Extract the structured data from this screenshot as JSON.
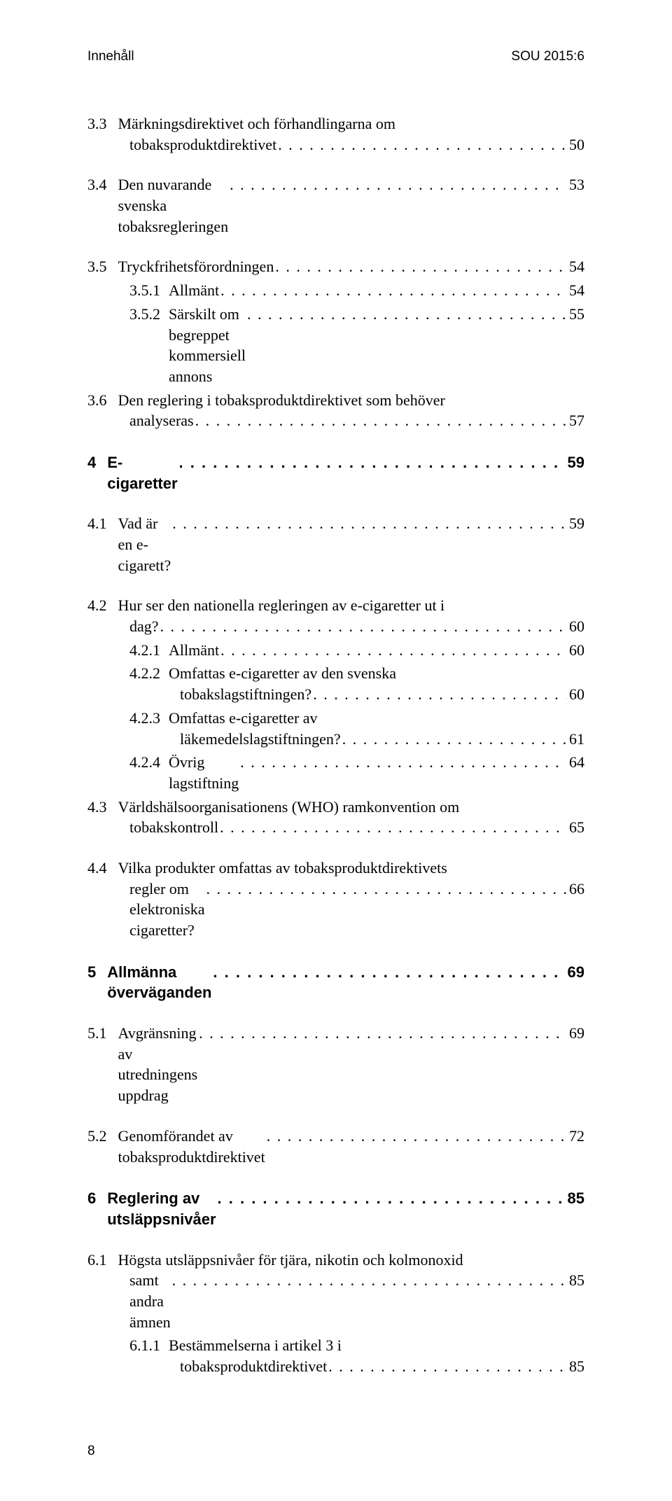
{
  "header": {
    "left": "Innehåll",
    "right": "SOU 2015:6"
  },
  "toc": [
    {
      "type": "entry",
      "num": "3.3",
      "title_lines": [
        "Märkningsdirektivet och förhandlingarna om",
        "tobaksproduktdirektivet"
      ],
      "page": "50",
      "style": "serif"
    },
    {
      "type": "entry",
      "num": "3.4",
      "title_lines": [
        "Den nuvarande svenska tobaksregleringen"
      ],
      "page": "53",
      "style": "serif"
    },
    {
      "type": "entry",
      "num": "3.5",
      "title_lines": [
        "Tryckfrihetsförordningen"
      ],
      "page": "54",
      "style": "serif"
    },
    {
      "type": "sub",
      "num": "3.5.1",
      "title_lines": [
        "Allmänt"
      ],
      "page": "54",
      "style": "serif"
    },
    {
      "type": "sub",
      "num": "3.5.2",
      "title_lines": [
        "Särskilt om begreppet kommersiell annons"
      ],
      "page": "55",
      "style": "serif"
    },
    {
      "type": "entry",
      "num": "3.6",
      "title_lines": [
        "Den reglering i tobaksproduktdirektivet som behöver",
        "analyseras"
      ],
      "page": "57",
      "style": "serif"
    },
    {
      "type": "chapter",
      "num": "4",
      "title_lines": [
        "E-cigaretter"
      ],
      "page": "59",
      "style": "sans-bold"
    },
    {
      "type": "entry",
      "num": "4.1",
      "title_lines": [
        "Vad är en e-cigarett?"
      ],
      "page": "59",
      "style": "serif"
    },
    {
      "type": "entry",
      "num": "4.2",
      "title_lines": [
        "Hur ser den nationella regleringen av e-cigaretter ut i",
        "dag?"
      ],
      "page": "60",
      "style": "serif"
    },
    {
      "type": "sub",
      "num": "4.2.1",
      "title_lines": [
        "Allmänt"
      ],
      "page": "60",
      "style": "serif"
    },
    {
      "type": "sub",
      "num": "4.2.2",
      "title_lines": [
        "Omfattas e-cigaretter av den svenska",
        "tobakslagstiftningen?"
      ],
      "page": "60",
      "style": "serif"
    },
    {
      "type": "sub",
      "num": "4.2.3",
      "title_lines": [
        "Omfattas e-cigaretter av",
        "läkemedelslagstiftningen?"
      ],
      "page": "61",
      "style": "serif"
    },
    {
      "type": "sub",
      "num": "4.2.4",
      "title_lines": [
        "Övrig lagstiftning"
      ],
      "page": "64",
      "style": "serif"
    },
    {
      "type": "entry",
      "num": "4.3",
      "title_lines": [
        "Världshälsoorganisationens (WHO) ramkonvention om",
        "tobakskontroll"
      ],
      "page": "65",
      "style": "serif"
    },
    {
      "type": "entry",
      "num": "4.4",
      "title_lines": [
        "Vilka produkter omfattas av tobaksproduktdirektivets",
        "regler om elektroniska cigaretter?"
      ],
      "page": "66",
      "style": "serif"
    },
    {
      "type": "chapter",
      "num": "5",
      "title_lines": [
        "Allmänna överväganden"
      ],
      "page": "69",
      "style": "sans-bold"
    },
    {
      "type": "entry",
      "num": "5.1",
      "title_lines": [
        "Avgränsning av utredningens uppdrag"
      ],
      "page": "69",
      "style": "serif"
    },
    {
      "type": "entry",
      "num": "5.2",
      "title_lines": [
        "Genomförandet av tobaksproduktdirektivet"
      ],
      "page": "72",
      "style": "serif"
    },
    {
      "type": "chapter",
      "num": "6",
      "title_lines": [
        "Reglering av utsläppsnivåer"
      ],
      "page": "85",
      "style": "sans-bold"
    },
    {
      "type": "entry",
      "num": "6.1",
      "title_lines": [
        "Högsta utsläppsnivåer för tjära, nikotin och kolmonoxid",
        "samt andra ämnen"
      ],
      "page": "85",
      "style": "serif"
    },
    {
      "type": "sub",
      "num": "6.1.1",
      "title_lines": [
        "Bestämmelserna i artikel 3 i",
        "tobaksproduktdirektivet"
      ],
      "page": "85",
      "style": "serif"
    }
  ],
  "footer": {
    "page_number": "8"
  }
}
